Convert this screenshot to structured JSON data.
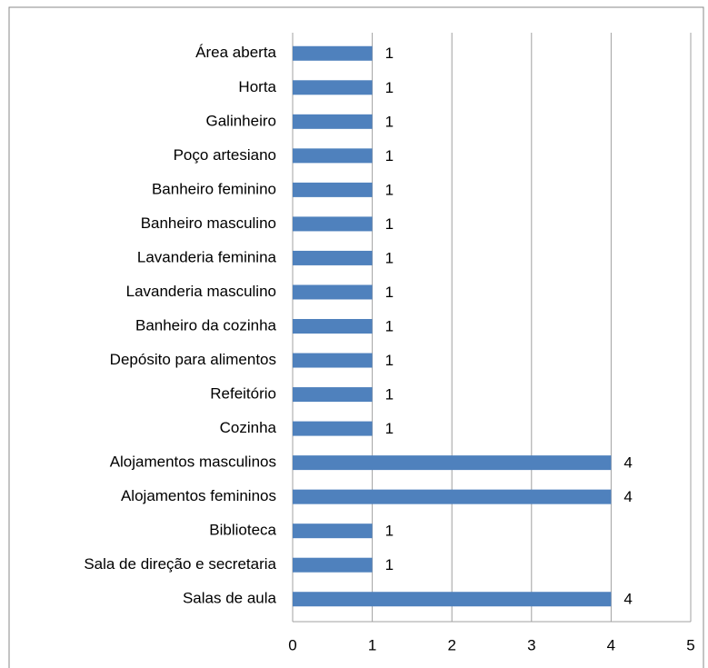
{
  "chart_data": {
    "type": "bar",
    "orientation": "horizontal",
    "categories": [
      "Área aberta",
      "Horta",
      "Galinheiro",
      "Poço artesiano",
      "Banheiro feminino",
      "Banheiro masculino",
      "Lavanderia feminina",
      "Lavanderia masculino",
      "Banheiro da cozinha",
      "Depósito para alimentos",
      "Refeitório",
      "Cozinha",
      "Alojamentos masculinos",
      "Alojamentos femininos",
      "Biblioteca",
      "Sala de direção e secretaria",
      "Salas de aula"
    ],
    "values": [
      1,
      1,
      1,
      1,
      1,
      1,
      1,
      1,
      1,
      1,
      1,
      1,
      4,
      4,
      1,
      1,
      4
    ],
    "color": "#4f81bd",
    "xlim": [
      0,
      5
    ],
    "xticks": [
      0,
      1,
      2,
      3,
      4,
      5
    ],
    "grid": true
  }
}
